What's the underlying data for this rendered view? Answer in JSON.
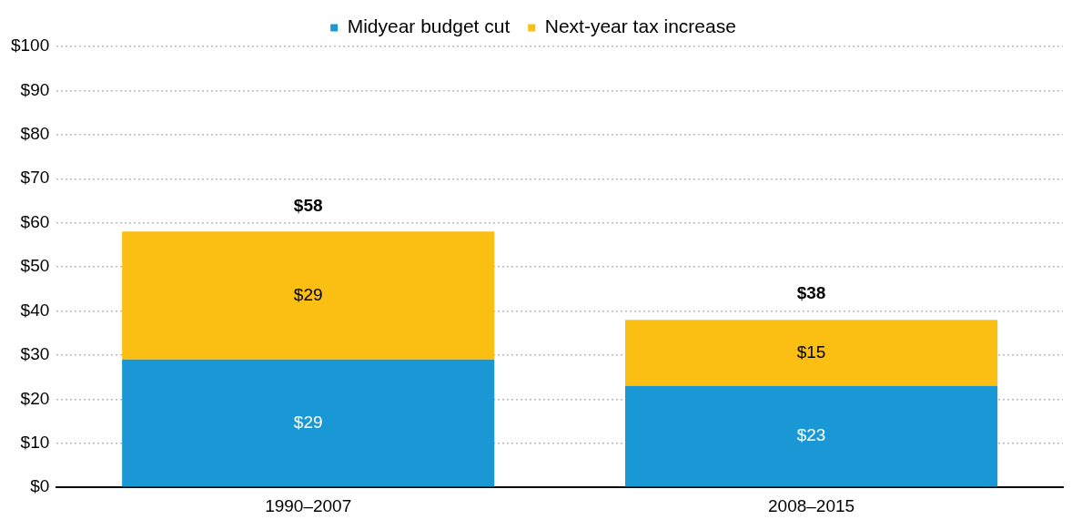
{
  "chart_data": {
    "type": "bar",
    "stacked": true,
    "categories": [
      "1990–2007",
      "2008–2015"
    ],
    "series": [
      {
        "name": "Midyear budget cut",
        "color": "#1a98d5",
        "values": [
          29,
          23
        ],
        "value_labels": [
          "$29",
          "$23"
        ]
      },
      {
        "name": "Next-year tax increase",
        "color": "#fbbf14",
        "values": [
          29,
          15
        ],
        "value_labels": [
          "$29",
          "$15"
        ]
      }
    ],
    "totals": [
      "$58",
      "$38"
    ],
    "ylim": [
      0,
      100
    ],
    "yticks": [
      {
        "value": 0,
        "label": "$0"
      },
      {
        "value": 10,
        "label": "$10"
      },
      {
        "value": 20,
        "label": "$20"
      },
      {
        "value": 30,
        "label": "$30"
      },
      {
        "value": 40,
        "label": "$40"
      },
      {
        "value": 50,
        "label": "$50"
      },
      {
        "value": 60,
        "label": "$60"
      },
      {
        "value": 70,
        "label": "$70"
      },
      {
        "value": 80,
        "label": "$80"
      },
      {
        "value": 90,
        "label": "$90"
      },
      {
        "value": 100,
        "label": "$100"
      }
    ],
    "grid": "y",
    "legend": "top"
  }
}
